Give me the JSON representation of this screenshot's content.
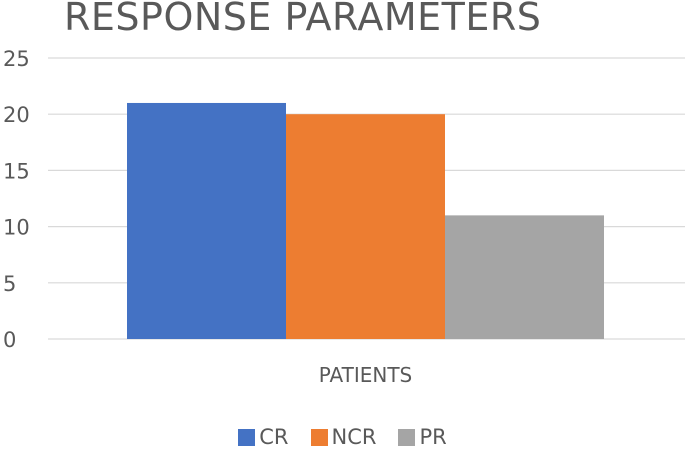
{
  "chart_data": {
    "type": "bar",
    "title": "RESPONSE PARAMETERS",
    "categories": [
      "PATIENTS"
    ],
    "series": [
      {
        "name": "CR",
        "values": [
          21
        ],
        "color": "#4472C4"
      },
      {
        "name": "NCR",
        "values": [
          20
        ],
        "color": "#ED7D31"
      },
      {
        "name": "PR",
        "values": [
          11
        ],
        "color": "#A5A5A5"
      }
    ],
    "ylim": [
      0,
      25
    ],
    "yticks": [
      0,
      5,
      10,
      15,
      20,
      25
    ],
    "grid": true,
    "legend": "bottom"
  }
}
